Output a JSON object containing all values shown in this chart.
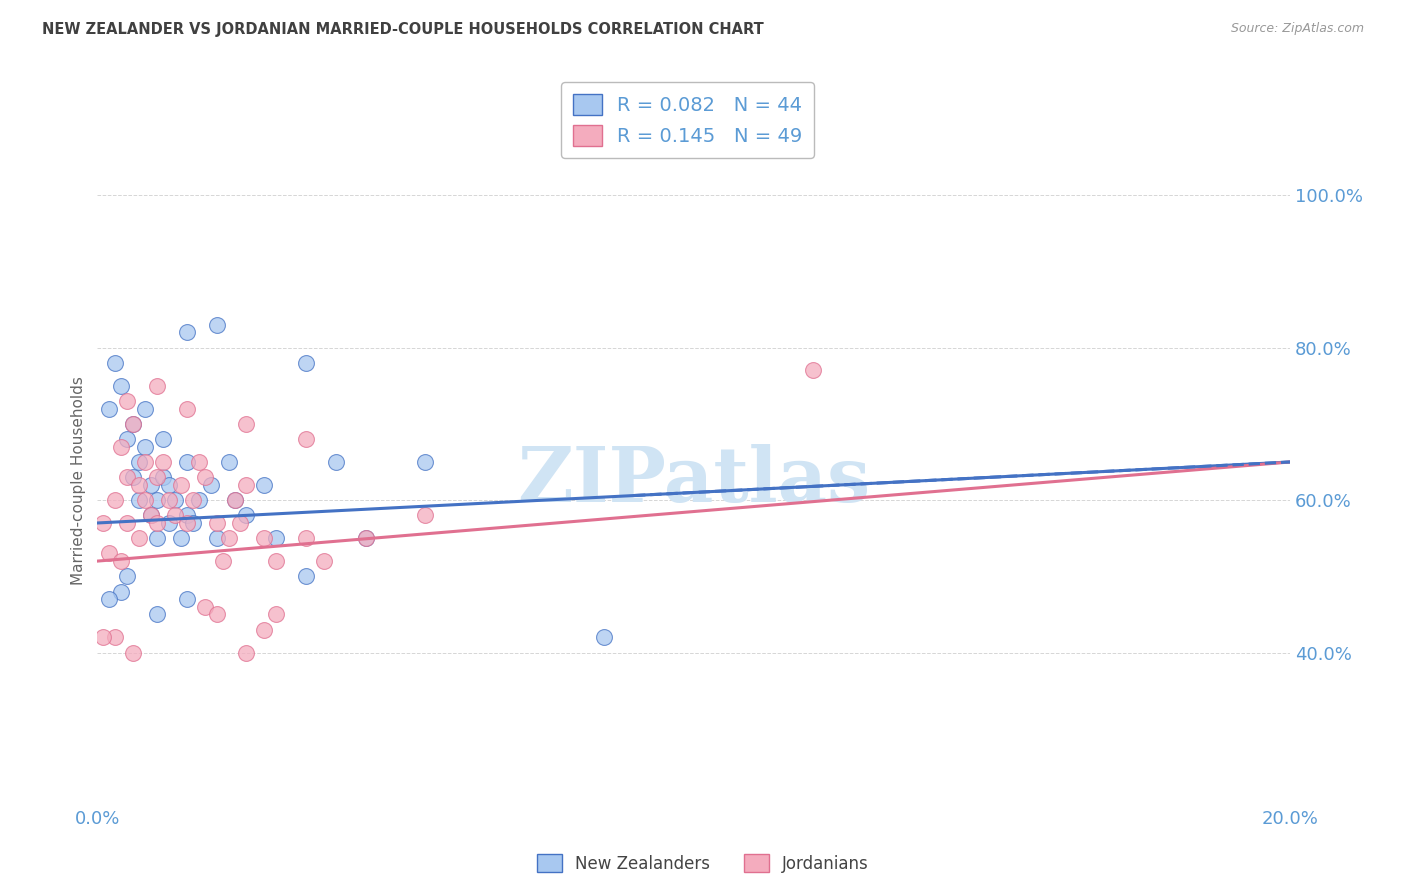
{
  "title": "NEW ZEALANDER VS JORDANIAN MARRIED-COUPLE HOUSEHOLDS CORRELATION CHART",
  "source": "Source: ZipAtlas.com",
  "ylabel": "Married-couple Households",
  "xlim": [
    0.0,
    20.0
  ],
  "ylim": [
    20.0,
    105.0
  ],
  "yticks": [
    40.0,
    60.0,
    80.0,
    100.0
  ],
  "ytick_labels": [
    "40.0%",
    "60.0%",
    "80.0%",
    "100.0%"
  ],
  "xticks": [
    0.0,
    5.0,
    10.0,
    15.0,
    20.0
  ],
  "xtick_labels": [
    "0.0%",
    "",
    "",
    "",
    "20.0%"
  ],
  "legend_label1": "New Zealanders",
  "legend_label2": "Jordanians",
  "blue_color": "#A8C8F0",
  "pink_color": "#F4ACBE",
  "blue_line_color": "#4472C4",
  "pink_line_color": "#E07090",
  "title_color": "#404040",
  "axis_color": "#5B9BD5",
  "watermark_text": "ZIPatlas",
  "watermark_color": "#D0E4F4",
  "background_color": "#FFFFFF",
  "grid_color": "#CCCCCC",
  "nz_r": 0.082,
  "jo_r": 0.145,
  "nz_n": 44,
  "jo_n": 49,
  "nz_points": [
    [
      0.2,
      72
    ],
    [
      0.3,
      78
    ],
    [
      0.4,
      75
    ],
    [
      0.5,
      68
    ],
    [
      0.6,
      63
    ],
    [
      0.6,
      70
    ],
    [
      0.7,
      60
    ],
    [
      0.7,
      65
    ],
    [
      0.8,
      72
    ],
    [
      0.8,
      67
    ],
    [
      0.9,
      58
    ],
    [
      0.9,
      62
    ],
    [
      1.0,
      60
    ],
    [
      1.0,
      55
    ],
    [
      1.1,
      63
    ],
    [
      1.1,
      68
    ],
    [
      1.2,
      57
    ],
    [
      1.2,
      62
    ],
    [
      1.3,
      60
    ],
    [
      1.4,
      55
    ],
    [
      1.5,
      58
    ],
    [
      1.5,
      65
    ],
    [
      1.6,
      57
    ],
    [
      1.7,
      60
    ],
    [
      1.9,
      62
    ],
    [
      2.0,
      55
    ],
    [
      2.2,
      65
    ],
    [
      2.3,
      60
    ],
    [
      2.5,
      58
    ],
    [
      2.8,
      62
    ],
    [
      3.0,
      55
    ],
    [
      3.5,
      50
    ],
    [
      4.0,
      65
    ],
    [
      4.5,
      55
    ],
    [
      1.5,
      82
    ],
    [
      2.0,
      83
    ],
    [
      3.5,
      78
    ],
    [
      5.5,
      65
    ],
    [
      0.4,
      48
    ],
    [
      1.0,
      45
    ],
    [
      1.5,
      47
    ],
    [
      8.5,
      42
    ],
    [
      0.2,
      47
    ],
    [
      0.5,
      50
    ]
  ],
  "jo_points": [
    [
      0.1,
      57
    ],
    [
      0.2,
      53
    ],
    [
      0.3,
      60
    ],
    [
      0.4,
      67
    ],
    [
      0.5,
      63
    ],
    [
      0.5,
      57
    ],
    [
      0.6,
      70
    ],
    [
      0.7,
      62
    ],
    [
      0.7,
      55
    ],
    [
      0.8,
      65
    ],
    [
      0.8,
      60
    ],
    [
      0.9,
      58
    ],
    [
      1.0,
      63
    ],
    [
      1.0,
      57
    ],
    [
      1.1,
      65
    ],
    [
      1.2,
      60
    ],
    [
      1.3,
      58
    ],
    [
      1.4,
      62
    ],
    [
      1.5,
      57
    ],
    [
      1.6,
      60
    ],
    [
      1.7,
      65
    ],
    [
      1.8,
      63
    ],
    [
      2.0,
      57
    ],
    [
      2.1,
      52
    ],
    [
      2.2,
      55
    ],
    [
      2.3,
      60
    ],
    [
      2.4,
      57
    ],
    [
      2.5,
      62
    ],
    [
      2.8,
      55
    ],
    [
      3.0,
      52
    ],
    [
      3.5,
      55
    ],
    [
      3.8,
      52
    ],
    [
      4.5,
      55
    ],
    [
      5.5,
      58
    ],
    [
      1.5,
      72
    ],
    [
      2.5,
      70
    ],
    [
      3.5,
      68
    ],
    [
      1.0,
      75
    ],
    [
      0.5,
      73
    ],
    [
      1.8,
      46
    ],
    [
      2.0,
      45
    ],
    [
      3.0,
      45
    ],
    [
      2.5,
      40
    ],
    [
      2.8,
      43
    ],
    [
      0.3,
      42
    ],
    [
      0.6,
      40
    ],
    [
      12.0,
      77
    ],
    [
      0.1,
      42
    ],
    [
      0.4,
      52
    ]
  ]
}
